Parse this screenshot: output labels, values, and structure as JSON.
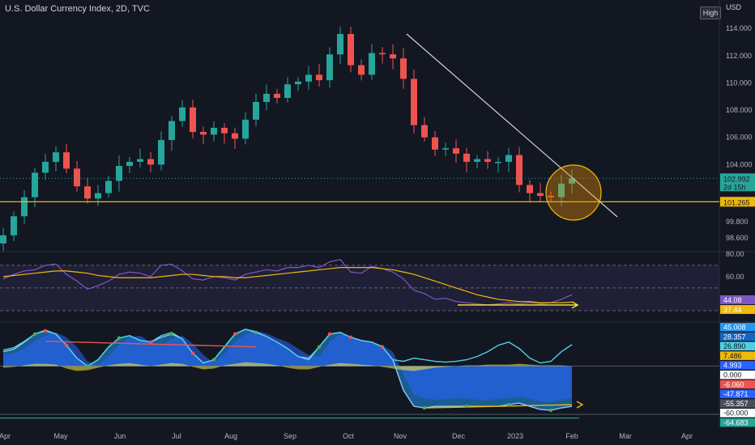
{
  "header": {
    "title": "U.S. Dollar Currency Index, 2D, TVC",
    "scale_button": "High",
    "currency": "USD"
  },
  "chart_data": [
    {
      "type": "candlestick",
      "name": "price",
      "title": "U.S. Dollar Currency Index, 2D, TVC",
      "ylim": [
        97.6,
        115.5
      ],
      "y_ticks": [
        "114.000",
        "112.000",
        "110.000",
        "108.000",
        "106.000",
        "104.000",
        "99.800",
        "98.600"
      ],
      "x_ticks": [
        "Apr",
        "May",
        "Jun",
        "Jul",
        "Aug",
        "Sep",
        "Oct",
        "Nov",
        "Dec",
        "2023",
        "Feb",
        "Mar",
        "Apr"
      ],
      "price_labels": [
        {
          "value": "102.992",
          "sub": "2d 15h",
          "color": "#26a69a"
        },
        {
          "value": "101.265",
          "color": "#f0b90b"
        }
      ],
      "close_path": [
        98.8,
        100.2,
        101.6,
        103.4,
        104.2,
        104.9,
        103.7,
        102.4,
        101.5,
        101.9,
        102.8,
        103.9,
        104.2,
        104.4,
        104.0,
        105.8,
        107.2,
        108.2,
        106.4,
        106.2,
        106.7,
        106.3,
        105.9,
        107.3,
        108.6,
        109.2,
        108.9,
        109.9,
        110.1,
        110.6,
        110.2,
        112.1,
        113.6,
        111.3,
        110.6,
        112.2,
        112.1,
        111.8,
        110.3,
        106.9,
        106.0,
        105.1,
        105.2,
        104.8,
        104.2,
        104.4,
        104.2,
        104.2,
        104.7,
        102.5,
        101.9,
        101.7,
        101.6,
        102.6,
        102.99
      ],
      "annotations": {
        "trendline": [
          [
            502,
            42
          ],
          [
            762,
            268
          ]
        ],
        "support_level": 101.265,
        "circle_center": [
          708,
          238
        ]
      }
    },
    {
      "type": "line",
      "name": "rsi",
      "ylim": [
        20,
        82
      ],
      "y_ticks": [
        "80.00",
        "60.00"
      ],
      "levels": [
        70,
        50,
        30
      ],
      "series": [
        {
          "color": "#7e57c2",
          "values": [
            58,
            62,
            65,
            66,
            70,
            71,
            62,
            56,
            49,
            52,
            56,
            62,
            64,
            63,
            60,
            70,
            71,
            65,
            58,
            57,
            60,
            59,
            57,
            62,
            64,
            66,
            65,
            68,
            68,
            70,
            68,
            73,
            75,
            64,
            63,
            69,
            67,
            64,
            58,
            48,
            45,
            40,
            41,
            38,
            37,
            36,
            35,
            36,
            37,
            36,
            37,
            36,
            37,
            40,
            44.08
          ]
        },
        {
          "color": "#f0b90b",
          "values": [
            60,
            61,
            62,
            63,
            64,
            65,
            65,
            64,
            63,
            61,
            60,
            59,
            59,
            59,
            59,
            60,
            61,
            62,
            62,
            61,
            60,
            60,
            59,
            59,
            60,
            61,
            62,
            63,
            64,
            65,
            66,
            67,
            68,
            68,
            68,
            68,
            67,
            66,
            64,
            62,
            59,
            56,
            53,
            50,
            47,
            44,
            42,
            40,
            39,
            38,
            38,
            37,
            37,
            37,
            37.44
          ]
        }
      ],
      "value_labels": [
        {
          "value": "44.08",
          "color": "#7e57c2"
        },
        {
          "value": "37.44",
          "color": "#f0b90b"
        }
      ]
    },
    {
      "type": "oscillator",
      "name": "momentum-waves",
      "ylim": [
        -68,
        55
      ],
      "series": [
        {
          "color": "#2962ff",
          "values": [
            14,
            16,
            22,
            31,
            38,
            42,
            36,
            24,
            6,
            2,
            12,
            26,
            36,
            38,
            30,
            26,
            34,
            38,
            28,
            14,
            4,
            15,
            30,
            40,
            44,
            41,
            35,
            30,
            22,
            14,
            12,
            30,
            40,
            36,
            32,
            30,
            26,
            18,
            -10,
            -36,
            -40,
            -42,
            -41,
            -40,
            -40,
            -42,
            -42,
            -41,
            -40,
            -38,
            -41,
            -44,
            -45,
            -42,
            -40
          ]
        },
        {
          "color": "#2196f3",
          "values": [
            18,
            21,
            30,
            40,
            44,
            40,
            26,
            10,
            0,
            8,
            24,
            35,
            38,
            32,
            30,
            36,
            40,
            34,
            16,
            4,
            8,
            24,
            40,
            46,
            42,
            37,
            30,
            22,
            12,
            8,
            24,
            40,
            42,
            36,
            32,
            30,
            24,
            8,
            -30,
            -50,
            -52,
            -50,
            -50,
            -50,
            -50,
            -50,
            -50,
            -50,
            -48,
            -46,
            -50,
            -54,
            -55,
            -52,
            -50
          ]
        },
        {
          "color": "#4dd0e1",
          "values": [
            20,
            23,
            31,
            40,
            45,
            40,
            26,
            10,
            0,
            8,
            24,
            35,
            38,
            32,
            30,
            38,
            42,
            34,
            16,
            4,
            8,
            24,
            40,
            46,
            43,
            37,
            30,
            22,
            12,
            10,
            24,
            40,
            42,
            36,
            32,
            30,
            24,
            8,
            6,
            10,
            8,
            6,
            5,
            6,
            8,
            12,
            18,
            26,
            30,
            22,
            10,
            4,
            6,
            18,
            26.89
          ]
        },
        {
          "color": "#ffeb3b",
          "values": [
            -2,
            -1,
            1,
            3,
            3,
            2,
            -3,
            -6,
            -5,
            -2,
            1,
            3,
            4,
            2,
            0,
            2,
            4,
            3,
            -1,
            -4,
            -3,
            1,
            3,
            5,
            4,
            3,
            1,
            -2,
            -4,
            -4,
            -1,
            2,
            4,
            3,
            2,
            1,
            -1,
            -3,
            -5,
            -6,
            -4,
            -2,
            -1,
            0,
            1,
            1,
            2,
            2,
            2,
            3,
            2,
            1,
            1,
            1,
            0
          ]
        }
      ],
      "divergence_lines": [
        {
          "from": [
            4,
            31
          ],
          "to": [
            24,
            24
          ],
          "color": "#ef5350"
        },
        {
          "from": [
            40,
            -52
          ],
          "to": [
            54,
            -48
          ],
          "color": "#f0b90b"
        }
      ],
      "value_labels": [
        {
          "value": "45.008",
          "color": "#2196f3"
        },
        {
          "value": "28.357",
          "color": "#1565c0"
        },
        {
          "value": "26.890",
          "color": "#4dd0e1"
        },
        {
          "value": "7.486",
          "color": "#f0b90b"
        },
        {
          "value": "4.993",
          "color": "#2962ff"
        },
        {
          "value": "0.000",
          "color": "#ffffff"
        },
        {
          "value": "-6.060",
          "color": "#ef5350"
        },
        {
          "value": "-47.871",
          "color": "#2962ff"
        },
        {
          "value": "-55.357",
          "color": "#4a4e59"
        },
        {
          "value": "-60.000",
          "color": "#ffffff"
        },
        {
          "value": "-64.683",
          "color": "#26a69a"
        }
      ]
    }
  ]
}
